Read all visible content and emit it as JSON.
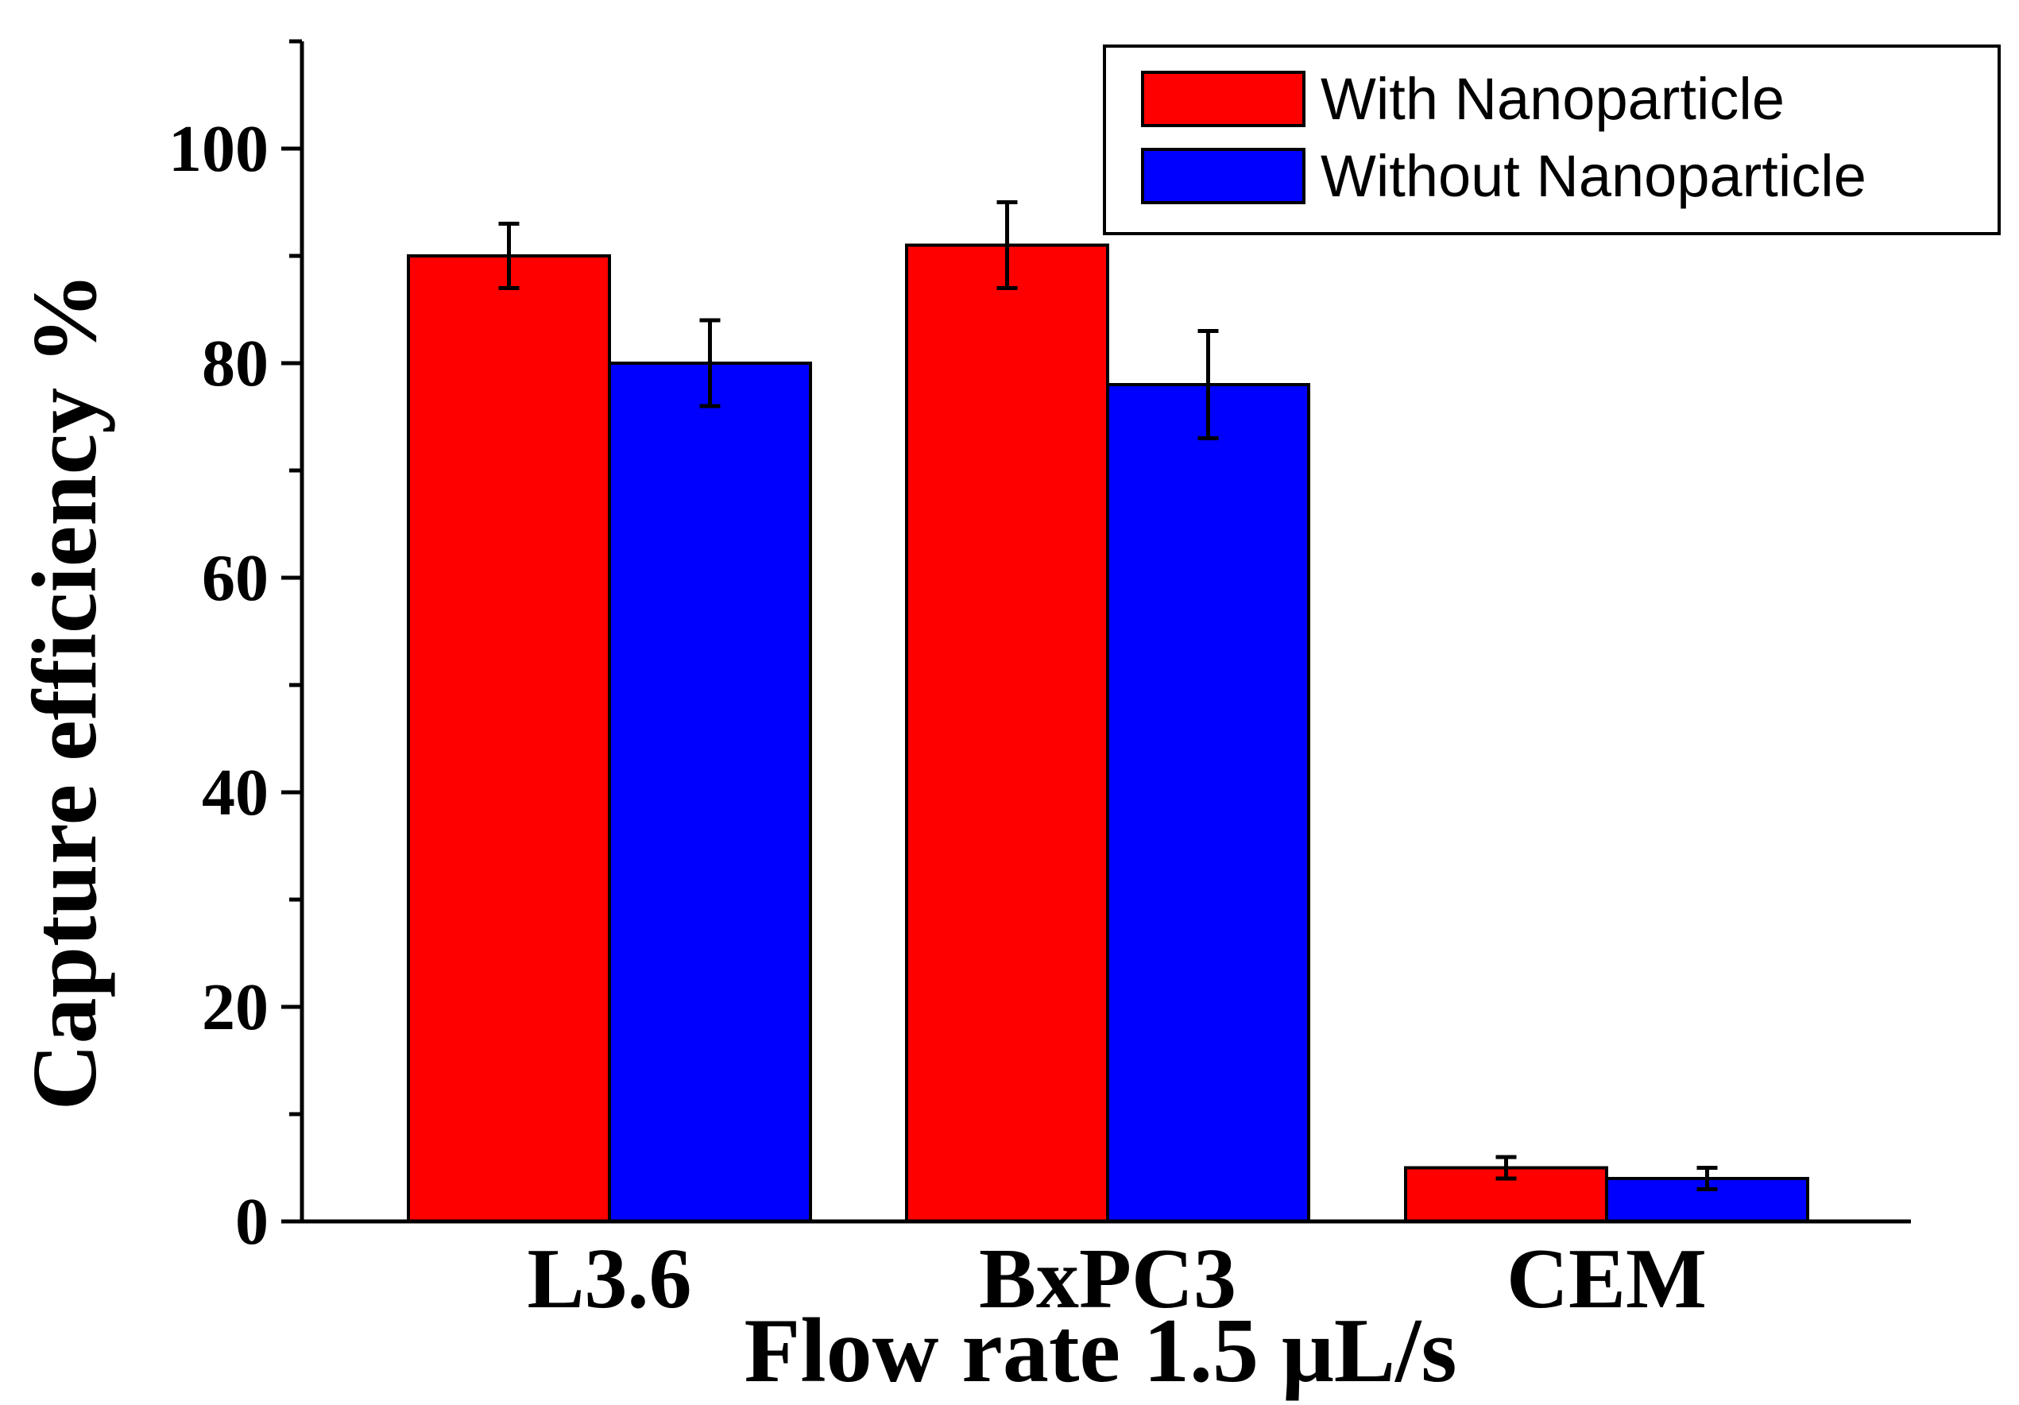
{
  "chart_data": {
    "type": "bar",
    "title": "",
    "xlabel": "Flow rate 1.5 μL/s",
    "ylabel": "Capture efficiency %",
    "categories": [
      "L3.6",
      "BxPC3",
      "CEM"
    ],
    "ylim": [
      0,
      110
    ],
    "yticks": [
      0,
      20,
      40,
      60,
      80,
      100
    ],
    "series": [
      {
        "name": "With Nanoparticle",
        "color": "#ff0000",
        "values": [
          90,
          91,
          5
        ],
        "errors": [
          3,
          4,
          1
        ]
      },
      {
        "name": "Without Nanoparticle",
        "color": "#0000ff",
        "values": [
          80,
          78,
          4
        ],
        "errors": [
          4,
          5,
          1
        ]
      }
    ],
    "legend_position": "top-right",
    "grid": false
  }
}
